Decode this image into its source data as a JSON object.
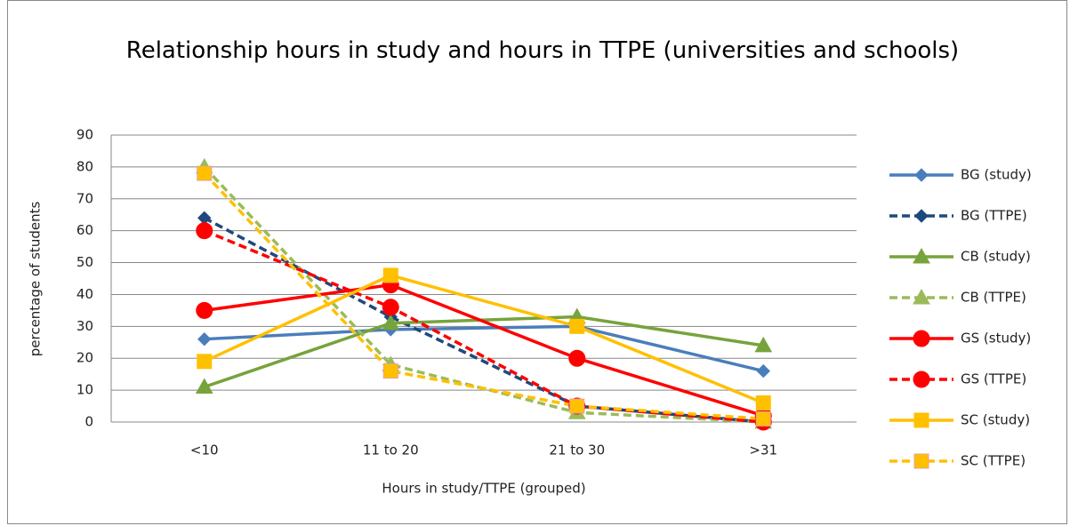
{
  "chart_data": {
    "type": "line",
    "title": "Relationship hours in study and hours in TTPE (universities and schools)",
    "x_label": "Hours in study/TTPE (grouped)",
    "y_label": "percentage of students",
    "categories": [
      "<10",
      "11 to 20",
      "21 to 30",
      ">31"
    ],
    "ylim": [
      0,
      90
    ],
    "yticks": [
      0,
      10,
      20,
      30,
      40,
      50,
      60,
      70,
      80,
      90
    ],
    "grid": true,
    "legend": "right",
    "series": [
      {
        "name": "BG (study)",
        "color": "#4a7ebb",
        "marker": "diamond",
        "dashed": false,
        "values": [
          26,
          29,
          30,
          16
        ]
      },
      {
        "name": "BG (TTPE)",
        "color": "#1f497d",
        "marker": "diamond",
        "dashed": true,
        "values": [
          64,
          33,
          5,
          0
        ]
      },
      {
        "name": "CB (study)",
        "color": "#77a33c",
        "marker": "triangle",
        "dashed": false,
        "values": [
          11,
          31,
          33,
          24
        ]
      },
      {
        "name": "CB (TTPE)",
        "color": "#9bbb59",
        "marker": "triangle",
        "dashed": true,
        "values": [
          80,
          18,
          3,
          0
        ]
      },
      {
        "name": "GS (study)",
        "color": "#ff0000",
        "marker": "circle",
        "dashed": false,
        "values": [
          35,
          43,
          20,
          2
        ]
      },
      {
        "name": "GS (TTPE)",
        "color": "#ff0000",
        "marker": "circle",
        "dashed": true,
        "values": [
          60,
          36,
          5,
          0
        ]
      },
      {
        "name": "SC (study)",
        "color": "#ffc000",
        "marker": "square",
        "dashed": false,
        "values": [
          19,
          46,
          30,
          6
        ]
      },
      {
        "name": "SC (TTPE)",
        "color": "#ffc000",
        "marker": "square",
        "dashed": true,
        "values": [
          78,
          16,
          5,
          1
        ]
      }
    ]
  }
}
